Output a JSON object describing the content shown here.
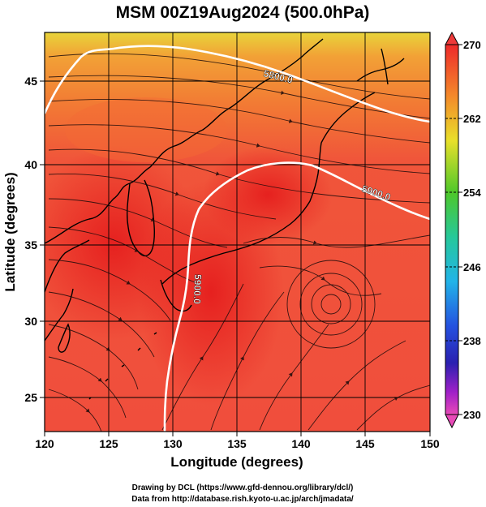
{
  "title": "MSM 00Z19Aug2024 (500.0hPa)",
  "map": {
    "xlabel": "Longitude (degrees)",
    "ylabel": "Latitude  (degrees)",
    "lon_range": [
      120,
      150
    ],
    "lat_range": [
      22.5,
      48
    ],
    "lon_ticks": [
      "120",
      "125",
      "130",
      "135",
      "140",
      "145",
      "150"
    ],
    "lat_ticks": [
      "25",
      "30",
      "35",
      "40",
      "45"
    ],
    "contours": [
      {
        "label": "5800.0"
      },
      {
        "label": "5900.0"
      }
    ]
  },
  "colorbar": {
    "range": [
      230,
      270
    ],
    "tick_labels": [
      "270",
      "262",
      "254",
      "246",
      "238",
      "230"
    ]
  },
  "footer": {
    "line1": "Drawing by DCL (https://www.gfd-dennou.org/library/dcl/)",
    "line2": "Data from http://database.rish.kyoto-u.ac.jp/arch/jmadata/"
  },
  "colors": {
    "warm_field": "#f0523a",
    "hot_core": "#e8221a",
    "cool_north": "#f4a03a",
    "yellow_edge": "#e6e02c",
    "contour": "#ffffff"
  }
}
